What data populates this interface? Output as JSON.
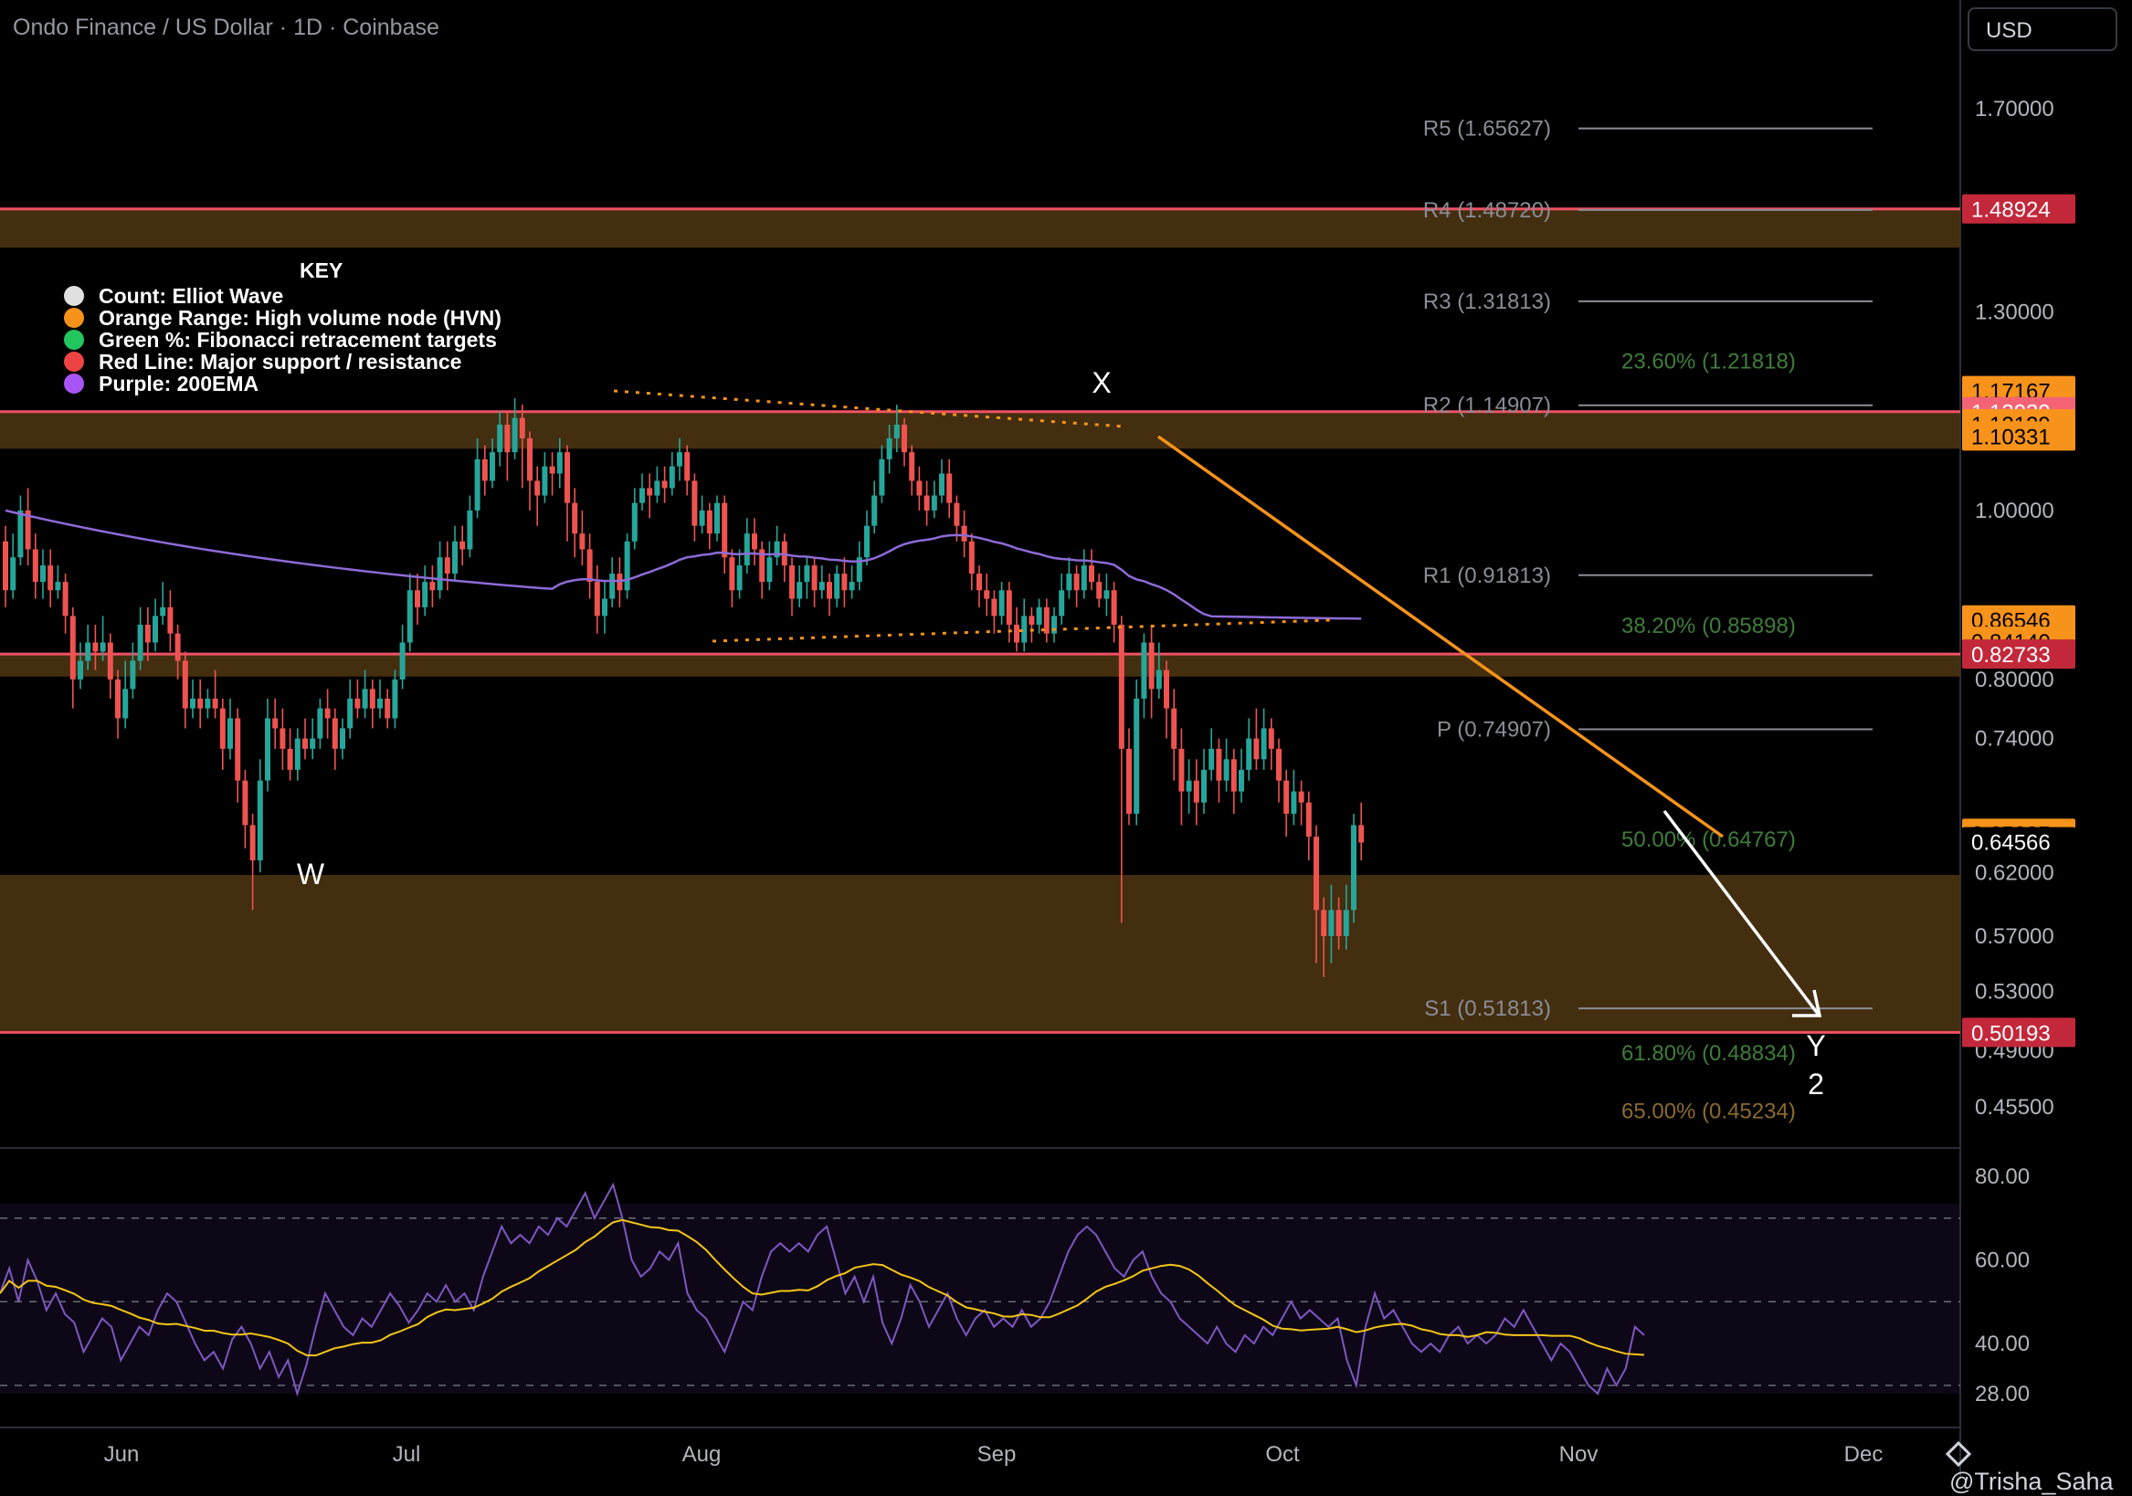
{
  "header": {
    "title": "Ondo Finance / US Dollar · 1D · Coinbase",
    "currency": "USD",
    "watermark": "@Trisha_Saha"
  },
  "key": {
    "title": "KEY",
    "items": [
      {
        "label": "Count: Elliot Wave",
        "color": "#e0e0e0"
      },
      {
        "label": "Orange Range: High volume node (HVN)",
        "color": "#f7931a"
      },
      {
        "label": "Green %: Fibonacci retracement targets",
        "color": "#22c55e"
      },
      {
        "label": "Red Line: Major support / resistance",
        "color": "#ef4444"
      },
      {
        "label": "Purple: 200EMA",
        "color": "#a855f7"
      }
    ]
  },
  "colors": {
    "up": "#26a69a",
    "down": "#ef5350",
    "hvn": "#4a3312",
    "support": "#f05264",
    "ema": "#8e6bd8",
    "trend": "#f7931a",
    "rsi": "#7e57c2",
    "rsi_ma": "#f5c518",
    "fib": "#3f7d3a"
  },
  "chart_data": {
    "type": "candlestick",
    "x_ticks": [
      "Jun",
      "Jul",
      "Aug",
      "Sep",
      "Oct",
      "Nov",
      "Dec"
    ],
    "y_ticks": [
      "1.70000",
      "1.30000",
      "1.00000",
      "0.80000",
      "0.74000",
      "0.62000",
      "0.57000",
      "0.53000",
      "0.49000",
      "0.45500"
    ],
    "price_scale": "log",
    "wave_labels": [
      "W",
      "X",
      "Y",
      "2"
    ],
    "pivots": [
      {
        "label": "R5 (1.65627)",
        "value": 1.65627
      },
      {
        "label": "R4 (1.48720)",
        "value": 1.4872
      },
      {
        "label": "R3 (1.31813)",
        "value": 1.31813
      },
      {
        "label": "R2 (1.14907)",
        "value": 1.14907
      },
      {
        "label": "R1 (0.91813)",
        "value": 0.91813
      },
      {
        "label": "P (0.74907)",
        "value": 0.74907
      },
      {
        "label": "S1 (0.51813)",
        "value": 0.51813
      }
    ],
    "fibs": [
      {
        "label": "23.60% (1.21818)",
        "value": 1.21818
      },
      {
        "label": "38.20% (0.85898)",
        "value": 0.85898
      },
      {
        "label": "50.00% (0.64767)",
        "value": 0.64767
      },
      {
        "label": "61.80% (0.48834)",
        "value": 0.48834
      },
      {
        "label": "65.00% (0.45234)",
        "value": 0.45234
      }
    ],
    "price_labels": [
      {
        "text": "1.48924",
        "value": 1.48924,
        "style": "red"
      },
      {
        "text": "1.17167",
        "value": 1.17167,
        "style": "orange"
      },
      {
        "text": "1.13939",
        "value": 1.13939,
        "style": "pink"
      },
      {
        "text": "1.12129",
        "value": 1.12129,
        "style": "orange"
      },
      {
        "text": "1.10331",
        "value": 1.10331,
        "style": "orange"
      },
      {
        "text": "0.86546",
        "value": 0.86546,
        "style": "orange"
      },
      {
        "text": "0.84140",
        "value": 0.8414,
        "style": "orange"
      },
      {
        "text": "0.82733",
        "value": 0.82733,
        "style": "red"
      },
      {
        "text": "0.65295",
        "value": 0.65295,
        "style": "orange"
      },
      {
        "text": "0.64566",
        "value": 0.64566,
        "style": "plain"
      },
      {
        "text": "0.50193",
        "value": 0.50193,
        "style": "red"
      }
    ],
    "support_lines": [
      1.48924,
      1.13939,
      0.82733,
      0.50193
    ],
    "hvn_zones": [
      [
        1.4872,
        1.415
      ],
      [
        1.139,
        1.085
      ],
      [
        0.827,
        0.803
      ],
      [
        0.618,
        0.50193
      ]
    ],
    "rsi": {
      "y_ticks": [
        "80.00",
        "60.00",
        "40.00",
        "28.00"
      ],
      "levels": [
        70,
        50,
        30
      ]
    },
    "candles": [
      [
        0.96,
        0.9,
        0.98,
        0.88
      ],
      [
        0.9,
        0.94,
        0.97,
        0.89
      ],
      [
        0.94,
        1.0,
        1.02,
        0.93
      ],
      [
        1.0,
        0.95,
        1.03,
        0.93
      ],
      [
        0.95,
        0.91,
        0.97,
        0.89
      ],
      [
        0.91,
        0.93,
        0.95,
        0.89
      ],
      [
        0.93,
        0.9,
        0.95,
        0.88
      ],
      [
        0.9,
        0.91,
        0.93,
        0.89
      ],
      [
        0.91,
        0.87,
        0.92,
        0.85
      ],
      [
        0.87,
        0.8,
        0.88,
        0.77
      ],
      [
        0.8,
        0.82,
        0.84,
        0.79
      ],
      [
        0.82,
        0.84,
        0.86,
        0.81
      ],
      [
        0.84,
        0.83,
        0.86,
        0.81
      ],
      [
        0.83,
        0.84,
        0.87,
        0.82
      ],
      [
        0.84,
        0.8,
        0.85,
        0.78
      ],
      [
        0.8,
        0.76,
        0.81,
        0.74
      ],
      [
        0.76,
        0.79,
        0.82,
        0.75
      ],
      [
        0.79,
        0.82,
        0.84,
        0.78
      ],
      [
        0.82,
        0.86,
        0.88,
        0.81
      ],
      [
        0.86,
        0.84,
        0.88,
        0.82
      ],
      [
        0.84,
        0.87,
        0.89,
        0.83
      ],
      [
        0.87,
        0.88,
        0.91,
        0.86
      ],
      [
        0.88,
        0.85,
        0.9,
        0.83
      ],
      [
        0.85,
        0.82,
        0.86,
        0.8
      ],
      [
        0.82,
        0.77,
        0.83,
        0.75
      ],
      [
        0.77,
        0.78,
        0.8,
        0.76
      ],
      [
        0.78,
        0.77,
        0.8,
        0.75
      ],
      [
        0.77,
        0.78,
        0.79,
        0.76
      ],
      [
        0.78,
        0.77,
        0.81,
        0.76
      ],
      [
        0.77,
        0.73,
        0.78,
        0.71
      ],
      [
        0.73,
        0.76,
        0.78,
        0.72
      ],
      [
        0.76,
        0.7,
        0.77,
        0.68
      ],
      [
        0.7,
        0.66,
        0.71,
        0.64
      ],
      [
        0.66,
        0.63,
        0.67,
        0.59
      ],
      [
        0.63,
        0.7,
        0.72,
        0.62
      ],
      [
        0.7,
        0.76,
        0.78,
        0.69
      ],
      [
        0.76,
        0.75,
        0.78,
        0.73
      ],
      [
        0.75,
        0.73,
        0.77,
        0.71
      ],
      [
        0.73,
        0.71,
        0.75,
        0.7
      ],
      [
        0.71,
        0.74,
        0.75,
        0.7
      ],
      [
        0.74,
        0.73,
        0.76,
        0.72
      ],
      [
        0.73,
        0.74,
        0.76,
        0.72
      ],
      [
        0.74,
        0.77,
        0.78,
        0.73
      ],
      [
        0.77,
        0.76,
        0.79,
        0.74
      ],
      [
        0.76,
        0.73,
        0.77,
        0.71
      ],
      [
        0.73,
        0.75,
        0.76,
        0.72
      ],
      [
        0.75,
        0.78,
        0.8,
        0.74
      ],
      [
        0.78,
        0.77,
        0.8,
        0.76
      ],
      [
        0.77,
        0.79,
        0.81,
        0.76
      ],
      [
        0.79,
        0.77,
        0.8,
        0.75
      ],
      [
        0.77,
        0.78,
        0.8,
        0.76
      ],
      [
        0.78,
        0.76,
        0.79,
        0.75
      ],
      [
        0.76,
        0.8,
        0.81,
        0.75
      ],
      [
        0.8,
        0.84,
        0.86,
        0.79
      ],
      [
        0.84,
        0.9,
        0.92,
        0.83
      ],
      [
        0.9,
        0.88,
        0.92,
        0.86
      ],
      [
        0.88,
        0.91,
        0.93,
        0.87
      ],
      [
        0.91,
        0.9,
        0.93,
        0.88
      ],
      [
        0.9,
        0.94,
        0.96,
        0.89
      ],
      [
        0.94,
        0.92,
        0.96,
        0.9
      ],
      [
        0.92,
        0.96,
        0.98,
        0.91
      ],
      [
        0.96,
        0.95,
        0.98,
        0.93
      ],
      [
        0.95,
        1.0,
        1.02,
        0.94
      ],
      [
        1.0,
        1.07,
        1.1,
        0.99
      ],
      [
        1.07,
        1.04,
        1.09,
        1.02
      ],
      [
        1.04,
        1.08,
        1.1,
        1.03
      ],
      [
        1.08,
        1.12,
        1.14,
        1.06
      ],
      [
        1.12,
        1.08,
        1.14,
        1.04
      ],
      [
        1.08,
        1.13,
        1.16,
        1.07
      ],
      [
        1.13,
        1.1,
        1.15,
        1.03
      ],
      [
        1.1,
        1.04,
        1.11,
        1.0
      ],
      [
        1.04,
        1.02,
        1.06,
        0.98
      ],
      [
        1.02,
        1.06,
        1.08,
        1.01
      ],
      [
        1.06,
        1.05,
        1.08,
        1.02
      ],
      [
        1.05,
        1.08,
        1.1,
        1.03
      ],
      [
        1.08,
        1.01,
        1.09,
        0.96
      ],
      [
        1.01,
        0.97,
        1.03,
        0.94
      ],
      [
        0.97,
        0.95,
        1.0,
        0.93
      ],
      [
        0.95,
        0.91,
        0.97,
        0.89
      ],
      [
        0.91,
        0.87,
        0.93,
        0.85
      ],
      [
        0.87,
        0.89,
        0.91,
        0.85
      ],
      [
        0.89,
        0.92,
        0.94,
        0.88
      ],
      [
        0.92,
        0.9,
        0.94,
        0.88
      ],
      [
        0.9,
        0.96,
        0.97,
        0.89
      ],
      [
        0.96,
        1.01,
        1.03,
        0.95
      ],
      [
        1.01,
        1.03,
        1.05,
        1.0
      ],
      [
        1.03,
        1.02,
        1.05,
        0.99
      ],
      [
        1.02,
        1.04,
        1.06,
        1.01
      ],
      [
        1.04,
        1.03,
        1.06,
        1.01
      ],
      [
        1.03,
        1.06,
        1.08,
        1.02
      ],
      [
        1.06,
        1.08,
        1.1,
        1.04
      ],
      [
        1.08,
        1.04,
        1.09,
        1.02
      ],
      [
        1.04,
        0.98,
        1.05,
        0.96
      ],
      [
        0.98,
        1.0,
        1.02,
        0.97
      ],
      [
        1.0,
        0.97,
        1.01,
        0.95
      ],
      [
        0.97,
        1.01,
        1.02,
        0.96
      ],
      [
        1.01,
        0.94,
        1.02,
        0.92
      ],
      [
        0.94,
        0.9,
        0.95,
        0.88
      ],
      [
        0.9,
        0.93,
        0.95,
        0.89
      ],
      [
        0.93,
        0.97,
        0.99,
        0.92
      ],
      [
        0.97,
        0.95,
        0.99,
        0.93
      ],
      [
        0.95,
        0.91,
        0.96,
        0.89
      ],
      [
        0.91,
        0.94,
        0.96,
        0.9
      ],
      [
        0.94,
        0.96,
        0.98,
        0.93
      ],
      [
        0.96,
        0.93,
        0.97,
        0.91
      ],
      [
        0.93,
        0.89,
        0.94,
        0.87
      ],
      [
        0.89,
        0.91,
        0.93,
        0.88
      ],
      [
        0.91,
        0.93,
        0.94,
        0.89
      ],
      [
        0.93,
        0.9,
        0.94,
        0.88
      ],
      [
        0.9,
        0.91,
        0.93,
        0.89
      ],
      [
        0.91,
        0.89,
        0.92,
        0.87
      ],
      [
        0.89,
        0.92,
        0.93,
        0.88
      ],
      [
        0.92,
        0.9,
        0.94,
        0.88
      ],
      [
        0.9,
        0.91,
        0.93,
        0.89
      ],
      [
        0.91,
        0.94,
        0.96,
        0.9
      ],
      [
        0.94,
        0.98,
        1.0,
        0.93
      ],
      [
        0.98,
        1.02,
        1.04,
        0.97
      ],
      [
        1.02,
        1.07,
        1.09,
        1.01
      ],
      [
        1.07,
        1.1,
        1.12,
        1.05
      ],
      [
        1.1,
        1.12,
        1.15,
        1.08
      ],
      [
        1.12,
        1.08,
        1.13,
        1.06
      ],
      [
        1.08,
        1.04,
        1.09,
        1.02
      ],
      [
        1.04,
        1.02,
        1.06,
        1.0
      ],
      [
        1.02,
        1.0,
        1.04,
        0.98
      ],
      [
        1.0,
        1.02,
        1.04,
        0.99
      ],
      [
        1.02,
        1.05,
        1.07,
        1.01
      ],
      [
        1.05,
        1.01,
        1.07,
        0.99
      ],
      [
        1.01,
        0.98,
        1.02,
        0.96
      ],
      [
        0.98,
        0.96,
        1.0,
        0.94
      ],
      [
        0.96,
        0.92,
        0.97,
        0.9
      ],
      [
        0.92,
        0.9,
        0.93,
        0.88
      ],
      [
        0.9,
        0.89,
        0.92,
        0.87
      ],
      [
        0.89,
        0.87,
        0.9,
        0.85
      ],
      [
        0.87,
        0.9,
        0.91,
        0.86
      ],
      [
        0.9,
        0.86,
        0.91,
        0.84
      ],
      [
        0.86,
        0.84,
        0.88,
        0.83
      ],
      [
        0.84,
        0.87,
        0.89,
        0.83
      ],
      [
        0.87,
        0.86,
        0.88,
        0.84
      ],
      [
        0.86,
        0.88,
        0.89,
        0.85
      ],
      [
        0.88,
        0.85,
        0.89,
        0.84
      ],
      [
        0.85,
        0.87,
        0.88,
        0.84
      ],
      [
        0.87,
        0.9,
        0.92,
        0.86
      ],
      [
        0.9,
        0.92,
        0.94,
        0.89
      ],
      [
        0.92,
        0.9,
        0.93,
        0.88
      ],
      [
        0.9,
        0.93,
        0.95,
        0.89
      ],
      [
        0.93,
        0.91,
        0.95,
        0.9
      ],
      [
        0.91,
        0.89,
        0.92,
        0.88
      ],
      [
        0.89,
        0.9,
        0.92,
        0.87
      ],
      [
        0.9,
        0.86,
        0.91,
        0.84
      ],
      [
        0.86,
        0.73,
        0.87,
        0.58
      ],
      [
        0.73,
        0.67,
        0.75,
        0.66
      ],
      [
        0.67,
        0.78,
        0.8,
        0.66
      ],
      [
        0.78,
        0.84,
        0.85,
        0.76
      ],
      [
        0.84,
        0.79,
        0.86,
        0.76
      ],
      [
        0.79,
        0.81,
        0.84,
        0.78
      ],
      [
        0.81,
        0.77,
        0.82,
        0.74
      ],
      [
        0.77,
        0.73,
        0.79,
        0.7
      ],
      [
        0.73,
        0.69,
        0.75,
        0.66
      ],
      [
        0.69,
        0.7,
        0.72,
        0.67
      ],
      [
        0.7,
        0.68,
        0.72,
        0.66
      ],
      [
        0.68,
        0.71,
        0.73,
        0.67
      ],
      [
        0.71,
        0.73,
        0.75,
        0.7
      ],
      [
        0.73,
        0.7,
        0.74,
        0.68
      ],
      [
        0.7,
        0.72,
        0.74,
        0.69
      ],
      [
        0.72,
        0.69,
        0.73,
        0.67
      ],
      [
        0.69,
        0.71,
        0.73,
        0.68
      ],
      [
        0.71,
        0.74,
        0.76,
        0.7
      ],
      [
        0.74,
        0.72,
        0.77,
        0.71
      ],
      [
        0.72,
        0.75,
        0.77,
        0.71
      ],
      [
        0.75,
        0.73,
        0.76,
        0.71
      ],
      [
        0.73,
        0.7,
        0.74,
        0.68
      ],
      [
        0.7,
        0.67,
        0.71,
        0.65
      ],
      [
        0.67,
        0.69,
        0.71,
        0.66
      ],
      [
        0.69,
        0.68,
        0.7,
        0.66
      ],
      [
        0.68,
        0.65,
        0.69,
        0.63
      ],
      [
        0.65,
        0.59,
        0.66,
        0.55
      ],
      [
        0.59,
        0.57,
        0.6,
        0.54
      ],
      [
        0.57,
        0.59,
        0.61,
        0.55
      ],
      [
        0.59,
        0.57,
        0.6,
        0.56
      ],
      [
        0.57,
        0.59,
        0.61,
        0.56
      ],
      [
        0.59,
        0.66,
        0.67,
        0.58
      ],
      [
        0.66,
        0.645,
        0.68,
        0.63
      ]
    ],
    "rsi_values": [
      52,
      58,
      50,
      60,
      55,
      48,
      52,
      47,
      45,
      38,
      42,
      46,
      44,
      36,
      40,
      44,
      42,
      48,
      52,
      50,
      45,
      40,
      36,
      38,
      34,
      41,
      44,
      40,
      34,
      38,
      32,
      36,
      28,
      35,
      44,
      52,
      48,
      44,
      42,
      46,
      44,
      48,
      52,
      49,
      45,
      48,
      52,
      50,
      54,
      50,
      52,
      48,
      56,
      62,
      68,
      64,
      66,
      64,
      68,
      66,
      70,
      68,
      72,
      76,
      70,
      74,
      78,
      70,
      60,
      56,
      58,
      62,
      60,
      64,
      52,
      48,
      46,
      42,
      38,
      44,
      50,
      48,
      56,
      62,
      64,
      62,
      64,
      62,
      66,
      68,
      60,
      52,
      56,
      50,
      56,
      45,
      40,
      46,
      54,
      50,
      44,
      48,
      52,
      46,
      42,
      46,
      48,
      44,
      46,
      44,
      48,
      44,
      46,
      50,
      56,
      62,
      66,
      68,
      66,
      62,
      58,
      56,
      60,
      62,
      56,
      52,
      50,
      46,
      44,
      42,
      40,
      44,
      40,
      38,
      42,
      40,
      44,
      42,
      46,
      50,
      46,
      48,
      46,
      44,
      46,
      36,
      30,
      44,
      52,
      46,
      48,
      44,
      40,
      38,
      40,
      38,
      42,
      44,
      40,
      42,
      40,
      42,
      46,
      44,
      48,
      44,
      40,
      36,
      40,
      38,
      34,
      30,
      28,
      34,
      30,
      34,
      44,
      42
    ]
  }
}
